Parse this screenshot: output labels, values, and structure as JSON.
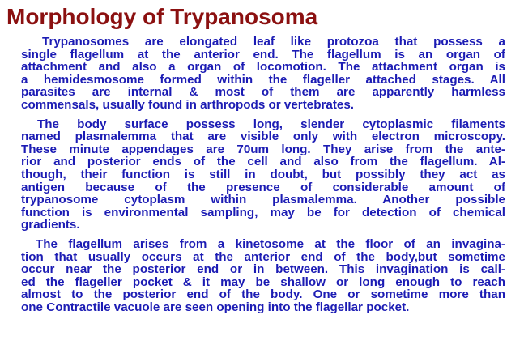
{
  "title": "Morphology of Trypanosoma",
  "paragraphs": [
    {
      "lines": [
        "Trypanosomes are elongated leaf like protozoa that possess a",
        "single flagellum at the anterior end. The flagellum is an organ of",
        "attachment and also a organ of locomotion. The attachment organ is",
        "a hemidesmosome formed within the flageller attached stages. All",
        "parasites are internal & most of them are apparently harmless",
        "commensals, usually found in  arthropods or vertebrates."
      ]
    },
    {
      "lines": [
        "The body surface possess long, slender cytoplasmic filaments",
        "named plasmalemma that are visible only with electron microscopy.",
        "These minute appendages are 70um long. They arise from the ante-",
        "rior and posterior ends of the cell and also from the flagellum. Al-",
        "though, their function is still in doubt, but  possibly they act as",
        "antigen because of  the presence of considerable amount of",
        "trypanosome cytoplasm within plasmalemma. Another possible",
        "function is environmental sampling, may be for detection of chemical",
        "gradients."
      ]
    },
    {
      "lines": [
        "The flagellum arises from a kinetosome at the floor of an invagina-",
        "tion that usually occurs at the anterior end of the body,but sometime",
        "occur near the posterior end or in between. This invagination is call-",
        "ed the flageller pocket & it may be shallow or long enough to reach",
        "almost to the posterior end of the body. One or sometime more than",
        "one Contractile vacuole are seen opening into the flagellar pocket."
      ]
    }
  ],
  "colors": {
    "title": "#8b1010",
    "body": "#1c1cb4",
    "background": "#ffffff"
  }
}
